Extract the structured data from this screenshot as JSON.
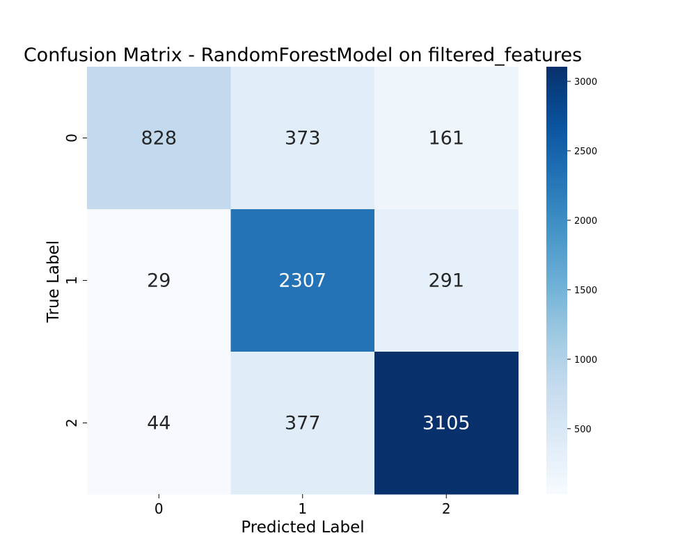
{
  "chart_data": {
    "type": "heatmap",
    "title": "Confusion Matrix - RandomForestModel on filtered_features",
    "xlabel": "Predicted Label",
    "ylabel": "True Label",
    "x_categories": [
      "0",
      "1",
      "2"
    ],
    "y_categories": [
      "0",
      "1",
      "2"
    ],
    "values": [
      [
        828,
        373,
        161
      ],
      [
        29,
        2307,
        291
      ],
      [
        44,
        377,
        3105
      ]
    ],
    "colormap": "Blues",
    "colorbar": {
      "range": [
        29,
        3105
      ],
      "ticks": [
        500,
        1000,
        1500,
        2000,
        2500,
        3000
      ]
    },
    "grid": false,
    "annotations": true
  }
}
